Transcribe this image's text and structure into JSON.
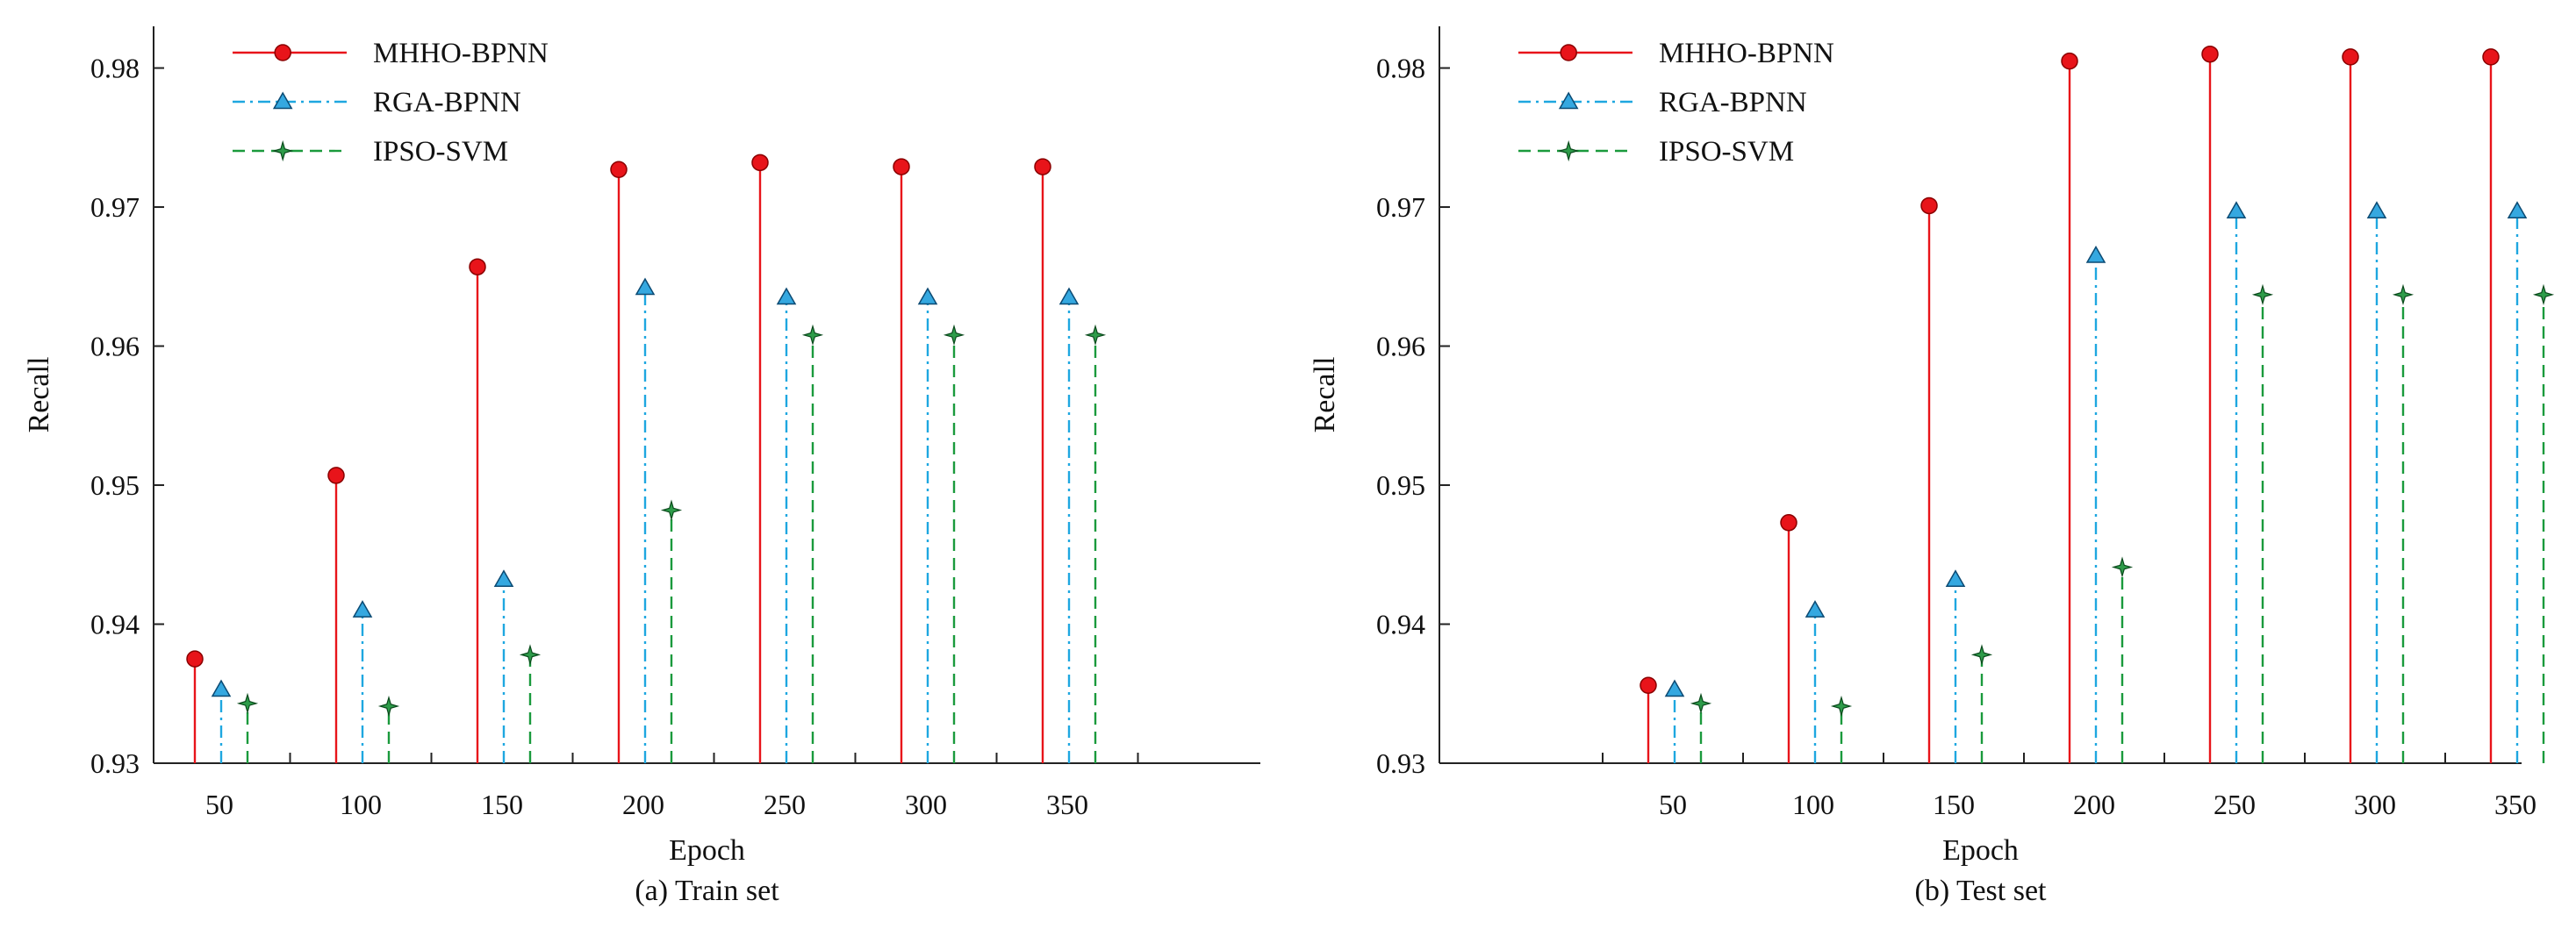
{
  "chart_data": [
    {
      "type": "stem",
      "caption": "(a) Train set",
      "xlabel": "Epoch",
      "ylabel": "Recall",
      "categories": [
        "50",
        "100",
        "150",
        "200",
        "250",
        "300",
        "350"
      ],
      "ylim": [
        0.93,
        0.983
      ],
      "yticks": [
        "0.93",
        "0.94",
        "0.95",
        "0.96",
        "0.97",
        "0.98"
      ],
      "legend_position": "top-left",
      "series": [
        {
          "name": "MHHO-BPNN",
          "values": [
            0.9375,
            0.9507,
            0.9657,
            0.9727,
            0.9732,
            0.9729,
            0.9729
          ]
        },
        {
          "name": "RGA-BPNN",
          "values": [
            0.9353,
            0.941,
            0.9432,
            0.9642,
            0.9635,
            0.9635,
            0.9635
          ]
        },
        {
          "name": "IPSO-SVM",
          "values": [
            0.9343,
            0.9341,
            0.9378,
            0.9482,
            0.9608,
            0.9608,
            0.9608
          ]
        }
      ]
    },
    {
      "type": "stem",
      "caption": "(b) Test set",
      "xlabel": "Epoch",
      "ylabel": "Recall",
      "categories": [
        "50",
        "100",
        "150",
        "200",
        "250",
        "300",
        "350"
      ],
      "ylim": [
        0.93,
        0.983
      ],
      "yticks": [
        "0.93",
        "0.94",
        "0.95",
        "0.96",
        "0.97",
        "0.98"
      ],
      "legend_position": "top-left",
      "series": [
        {
          "name": "MHHO-BPNN",
          "values": [
            0.9356,
            0.9473,
            0.9701,
            0.9805,
            0.981,
            0.9808,
            0.9808
          ]
        },
        {
          "name": "RGA-BPNN",
          "values": [
            0.9353,
            0.941,
            0.9432,
            0.9665,
            0.9697,
            0.9697,
            0.9697
          ]
        },
        {
          "name": "IPSO-SVM",
          "values": [
            0.9343,
            0.9341,
            0.9378,
            0.9441,
            0.9637,
            0.9637,
            0.9637
          ]
        }
      ]
    }
  ],
  "series_styles": [
    {
      "color": "#e8141a",
      "marker": "circle",
      "marker_fill": "#e8141a",
      "dash": "solid"
    },
    {
      "color": "#1ea7e0",
      "marker": "triangle",
      "marker_fill": "#35a8e0",
      "dash": "dash-dot"
    },
    {
      "color": "#1a9a3c",
      "marker": "star",
      "marker_fill": "#2e9c4a",
      "dash": "dashed"
    }
  ],
  "axis_color": "#222222"
}
